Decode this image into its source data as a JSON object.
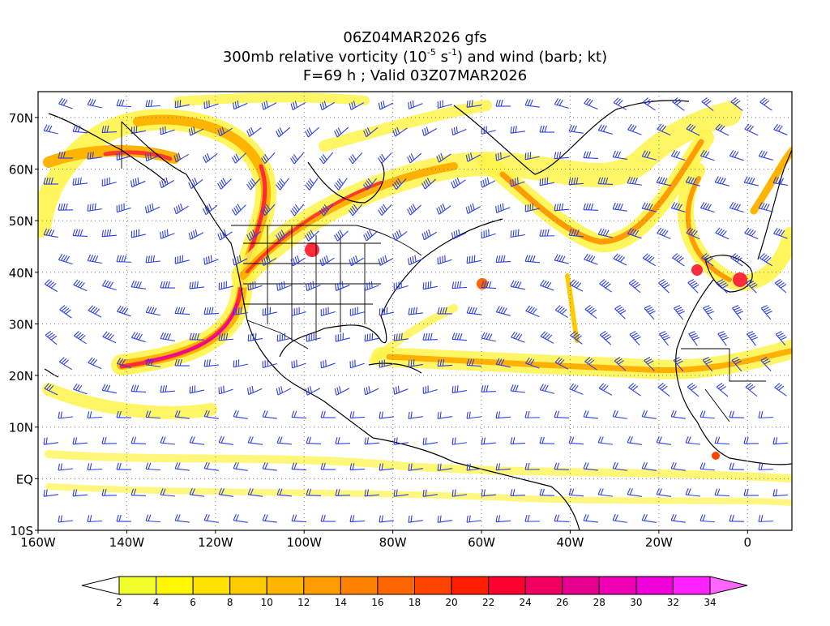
{
  "header": {
    "line1": "06Z04MAR2026 gfs",
    "line2_pre": "300mb relative vorticity (10",
    "line2_exp1": "-5",
    "line2_mid": " s",
    "line2_exp2": "-1",
    "line2_post": ") and wind (barb; kt)",
    "line3": "F=69 h ; Valid 03Z07MAR2026"
  },
  "map": {
    "lon_range": [
      -160,
      10
    ],
    "lat_range": [
      -10,
      75
    ],
    "lat_ticks": [
      {
        "lat": 70,
        "label": "70N"
      },
      {
        "lat": 60,
        "label": "60N"
      },
      {
        "lat": 50,
        "label": "50N"
      },
      {
        "lat": 40,
        "label": "40N"
      },
      {
        "lat": 30,
        "label": "30N"
      },
      {
        "lat": 20,
        "label": "20N"
      },
      {
        "lat": 10,
        "label": "10N"
      },
      {
        "lat": 0,
        "label": "EQ"
      },
      {
        "lat": -10,
        "label": "10S"
      }
    ],
    "lon_ticks": [
      {
        "lon": -160,
        "label": "160W"
      },
      {
        "lon": -140,
        "label": "140W"
      },
      {
        "lon": -120,
        "label": "120W"
      },
      {
        "lon": -100,
        "label": "100W"
      },
      {
        "lon": -80,
        "label": "80W"
      },
      {
        "lon": -60,
        "label": "60W"
      },
      {
        "lon": -40,
        "label": "40W"
      },
      {
        "lon": -20,
        "label": "20W"
      },
      {
        "lon": 0,
        "label": "0"
      }
    ],
    "grid": true,
    "barb_color": "#2b3fe0",
    "coast_color": "#000000"
  },
  "colorbar": {
    "labels": [
      "2",
      "4",
      "6",
      "8",
      "10",
      "12",
      "14",
      "16",
      "18",
      "20",
      "22",
      "24",
      "26",
      "28",
      "30",
      "32",
      "34"
    ],
    "colors": [
      "#ffffff",
      "#f0ff2c",
      "#fff700",
      "#ffe200",
      "#ffcc00",
      "#ffb400",
      "#ff9c00",
      "#ff8200",
      "#ff6600",
      "#ff4400",
      "#ff1e00",
      "#ff0030",
      "#f00060",
      "#e80090",
      "#f000b4",
      "#f000d8",
      "#ff22ff",
      "#ff66ff"
    ]
  }
}
